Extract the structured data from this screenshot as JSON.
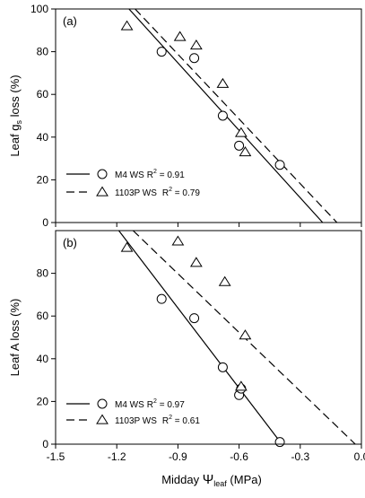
{
  "figure": {
    "xlabel_prefix": "Midday ",
    "xlabel_psi": "Ψ",
    "xlabel_sub": "leaf",
    "xlabel_unit": " (MPa)"
  },
  "chart_data": [
    {
      "type": "scatter",
      "panel_label": "(a)",
      "ylabel_main": "Leaf g",
      "ylabel_sub": "s",
      "ylabel_tail": " loss (%)",
      "xlim": [
        -1.5,
        0.0
      ],
      "ylim": [
        0,
        100
      ],
      "x_ticks": [
        -1.5,
        -1.2,
        -0.9,
        -0.6,
        -0.3,
        0.0
      ],
      "y_ticks": [
        0,
        20,
        40,
        60,
        80,
        100
      ],
      "legend_position": "lower-left",
      "series": [
        {
          "name": "M4 WS",
          "r2_text": "R",
          "r2_sup": "2",
          "r2_value": " = 0.91",
          "marker": "circle",
          "line_style": "solid",
          "points": [
            [
              -0.98,
              80
            ],
            [
              -0.82,
              77
            ],
            [
              -0.68,
              50
            ],
            [
              -0.6,
              36
            ],
            [
              -0.4,
              27
            ]
          ],
          "fit_line": [
            [
              -1.14,
              100
            ],
            [
              -0.19,
              0
            ]
          ]
        },
        {
          "name": "1103P WS",
          "r2_text": "R",
          "r2_sup": "2",
          "r2_value": " = 0.79",
          "marker": "triangle",
          "line_style": "dashed",
          "points": [
            [
              -1.15,
              92
            ],
            [
              -0.89,
              87
            ],
            [
              -0.81,
              83
            ],
            [
              -0.68,
              65
            ],
            [
              -0.59,
              42
            ],
            [
              -0.57,
              33
            ]
          ],
          "fit_line": [
            [
              -1.11,
              100
            ],
            [
              -0.12,
              0
            ]
          ]
        }
      ]
    },
    {
      "type": "scatter",
      "panel_label": "(b)",
      "ylabel_main": "Leaf A loss (%)",
      "xlim": [
        -1.5,
        0.0
      ],
      "ylim": [
        0,
        100
      ],
      "x_ticks": [
        -1.5,
        -1.2,
        -0.9,
        -0.6,
        -0.3,
        0.0
      ],
      "x_tick_labels": [
        "-1.5",
        "-1.2",
        "-0.9",
        "-0.6",
        "-0.3",
        "0.0"
      ],
      "y_ticks": [
        0,
        20,
        40,
        60,
        80
      ],
      "legend_position": "lower-left",
      "series": [
        {
          "name": "M4 WS",
          "r2_text": "R",
          "r2_sup": "2",
          "r2_value": " = 0.97",
          "marker": "circle",
          "line_style": "solid",
          "points": [
            [
              -0.98,
              68
            ],
            [
              -0.82,
              59
            ],
            [
              -0.68,
              36
            ],
            [
              -0.6,
              23
            ],
            [
              -0.59,
              26
            ],
            [
              -0.4,
              1
            ]
          ],
          "fit_line": [
            [
              -1.19,
              100
            ],
            [
              -0.39,
              0
            ]
          ]
        },
        {
          "name": "1103P WS",
          "r2_text": "R",
          "r2_sup": "2",
          "r2_value": " = 0.61",
          "marker": "triangle",
          "line_style": "dashed",
          "points": [
            [
              -1.15,
              92
            ],
            [
              -0.9,
              95
            ],
            [
              -0.81,
              85
            ],
            [
              -0.67,
              76
            ],
            [
              -0.57,
              51
            ],
            [
              -0.59,
              27
            ]
          ],
          "fit_line": [
            [
              -1.12,
              100
            ],
            [
              -0.03,
              0
            ]
          ]
        }
      ]
    }
  ]
}
